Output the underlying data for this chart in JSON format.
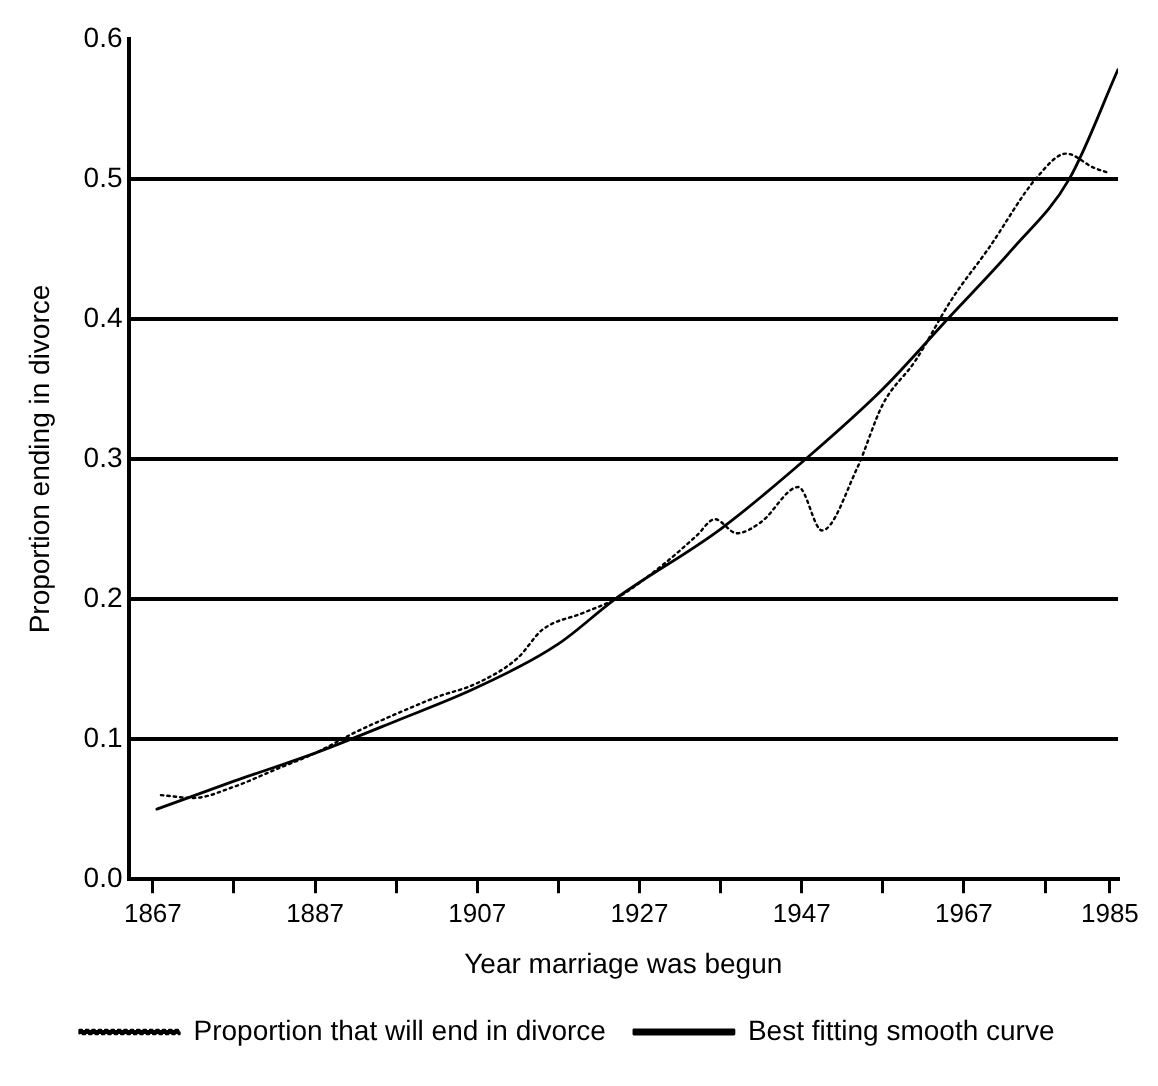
{
  "chart_data": {
    "type": "line",
    "xlabel": "Year marriage was begun",
    "ylabel": "Proportion ending in divorce",
    "xlim": [
      1864,
      1986
    ],
    "xticks": [
      1867,
      {
        "value": 1877,
        "label": null
      },
      1887,
      {
        "value": 1897,
        "label": null
      },
      1907,
      {
        "value": 1917,
        "label": null
      },
      1927,
      {
        "value": 1937,
        "label": null
      },
      1947,
      {
        "value": 1957,
        "label": null
      },
      1967,
      {
        "value": 1977,
        "label": null
      },
      1985
    ],
    "ylim": [
      0,
      0.6
    ],
    "yticks": [
      {
        "value": 0,
        "label": "0.0"
      },
      0.1,
      0.2,
      0.3,
      0.4,
      0.5,
      0.6
    ],
    "grid": "y",
    "legend": "bottom",
    "marker": "none",
    "series": [
      {
        "name": "Proportion that will end in divorce",
        "color": "#000000",
        "line_style": "dotted",
        "x": [
          1868,
          1872,
          1877,
          1882,
          1887,
          1892,
          1897,
          1902,
          1907,
          1912,
          1915,
          1920,
          1924,
          1930,
          1934,
          1936.3,
          1939,
          1942,
          1946.6,
          1949.5,
          1953.8,
          1957,
          1961,
          1965.5,
          1970,
          1976,
          1979.6,
          1983,
          1985
        ],
        "values": [
          0.06,
          0.058,
          0.066,
          0.078,
          0.09,
          0.105,
          0.118,
          0.13,
          0.14,
          0.158,
          0.178,
          0.19,
          0.2,
          0.225,
          0.245,
          0.257,
          0.247,
          0.255,
          0.28,
          0.249,
          0.293,
          0.339,
          0.37,
          0.414,
          0.45,
          0.501,
          0.518,
          0.508,
          0.504
        ]
      },
      {
        "name": "Best fitting smooth curve",
        "color": "#000000",
        "line_style": "solid",
        "x": [
          1867.5,
          1877,
          1887,
          1897,
          1907,
          1917,
          1924,
          1937,
          1947.5,
          1957,
          1965,
          1973,
          1980,
          1986
        ],
        "values": [
          0.05,
          0.07,
          0.09,
          0.113,
          0.137,
          0.168,
          0.2,
          0.25,
          0.3,
          0.35,
          0.4,
          0.45,
          0.5,
          0.578
        ]
      }
    ]
  }
}
